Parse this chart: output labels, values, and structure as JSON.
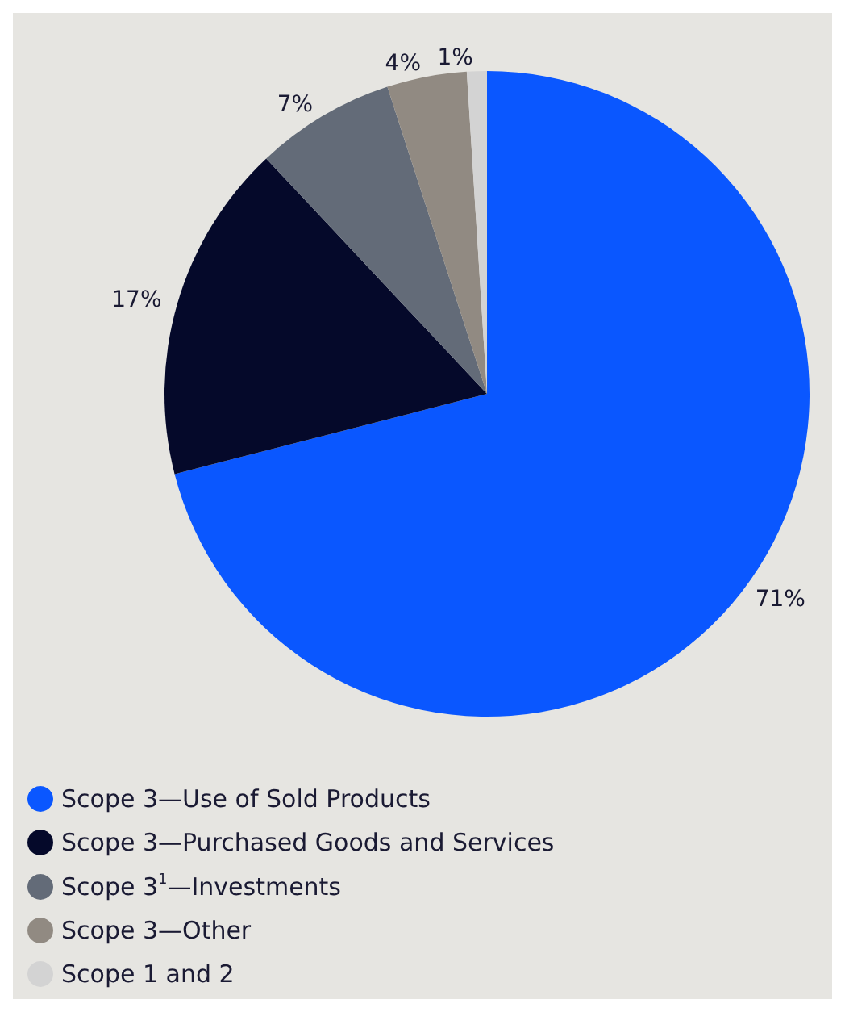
{
  "chart_data": {
    "type": "pie",
    "categories": [
      "Scope 3—Use of Sold Products",
      "Scope 3—Purchased Goods and Services",
      "Scope 3$^{1}$—Investments",
      "Scope 3—Other",
      "Scope 1 and 2"
    ],
    "values": [
      71,
      17,
      7,
      4,
      1
    ],
    "colors": [
      "#0a57ff",
      "#05092a",
      "#636b78",
      "#918a82",
      "#d3d3d3"
    ],
    "value_labels": [
      "71%",
      "17%",
      "7%",
      "4%",
      "1%"
    ],
    "legend": "bottom left"
  }
}
